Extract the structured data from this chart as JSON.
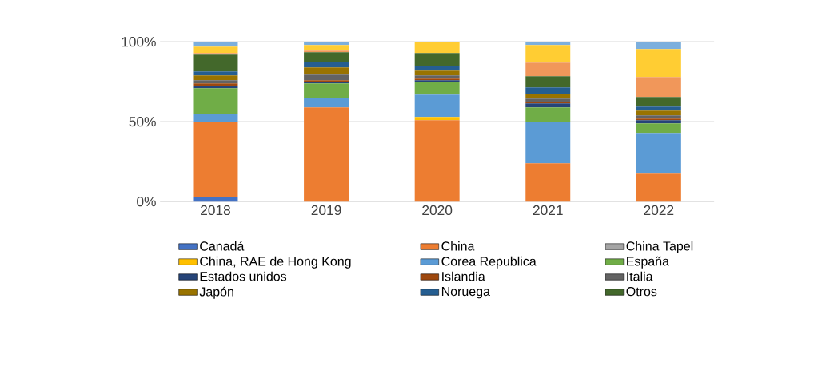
{
  "chart_data": {
    "type": "bar",
    "stacked": true,
    "categories": [
      "2018",
      "2019",
      "2020",
      "2021",
      "2022"
    ],
    "ylim": [
      0,
      100
    ],
    "yticks": [
      {
        "value": 0,
        "label": "0%"
      },
      {
        "value": 50,
        "label": "50%"
      },
      {
        "value": 100,
        "label": "100%"
      }
    ],
    "grid": "y",
    "legend": "bottom",
    "series": [
      {
        "name": "Canadá",
        "color": "#4472c4",
        "values": [
          3,
          0,
          0,
          0,
          0
        ]
      },
      {
        "name": "China",
        "color": "#ed7d31",
        "values": [
          47,
          59,
          51,
          24,
          18
        ]
      },
      {
        "name": "China Tapel",
        "color": "#a5a5a5",
        "values": [
          0,
          0,
          0,
          0,
          0
        ]
      },
      {
        "name": "China, RAE de Hong Kong",
        "color": "#ffc000",
        "values": [
          0,
          0,
          2,
          0,
          0
        ]
      },
      {
        "name": "Corea Republica",
        "color": "#5b9bd5",
        "values": [
          5,
          6,
          14,
          26,
          25
        ]
      },
      {
        "name": "España",
        "color": "#70ad47",
        "values": [
          16,
          9,
          8,
          9,
          6
        ]
      },
      {
        "name": "Estados unidos",
        "color": "#264478",
        "values": [
          1.5,
          1,
          1,
          2.5,
          2
        ]
      },
      {
        "name": "Islandia",
        "color": "#9e480e",
        "values": [
          1.5,
          1,
          1,
          1,
          1
        ]
      },
      {
        "name": "Italia",
        "color": "#636363",
        "values": [
          2,
          3.5,
          2,
          2,
          2
        ]
      },
      {
        "name": "Japón",
        "color": "#997300",
        "values": [
          3,
          4.5,
          3,
          3,
          3
        ]
      },
      {
        "name": "Noruega",
        "color": "#255e91",
        "values": [
          2.5,
          3.5,
          3,
          4,
          2.5
        ]
      },
      {
        "name": "Otros",
        "color": "#43682b",
        "values": [
          10.5,
          6,
          8,
          7,
          6
        ]
      },
      {
        "color": "#f1975a",
        "values": [
          1,
          1,
          0,
          8.5,
          12.5
        ]
      },
      {
        "color": "#ffcd33",
        "values": [
          4,
          3.5,
          7,
          11,
          17.5
        ]
      },
      {
        "color": "#7cafdd",
        "values": [
          3,
          2,
          0,
          2,
          4.5
        ]
      }
    ]
  }
}
